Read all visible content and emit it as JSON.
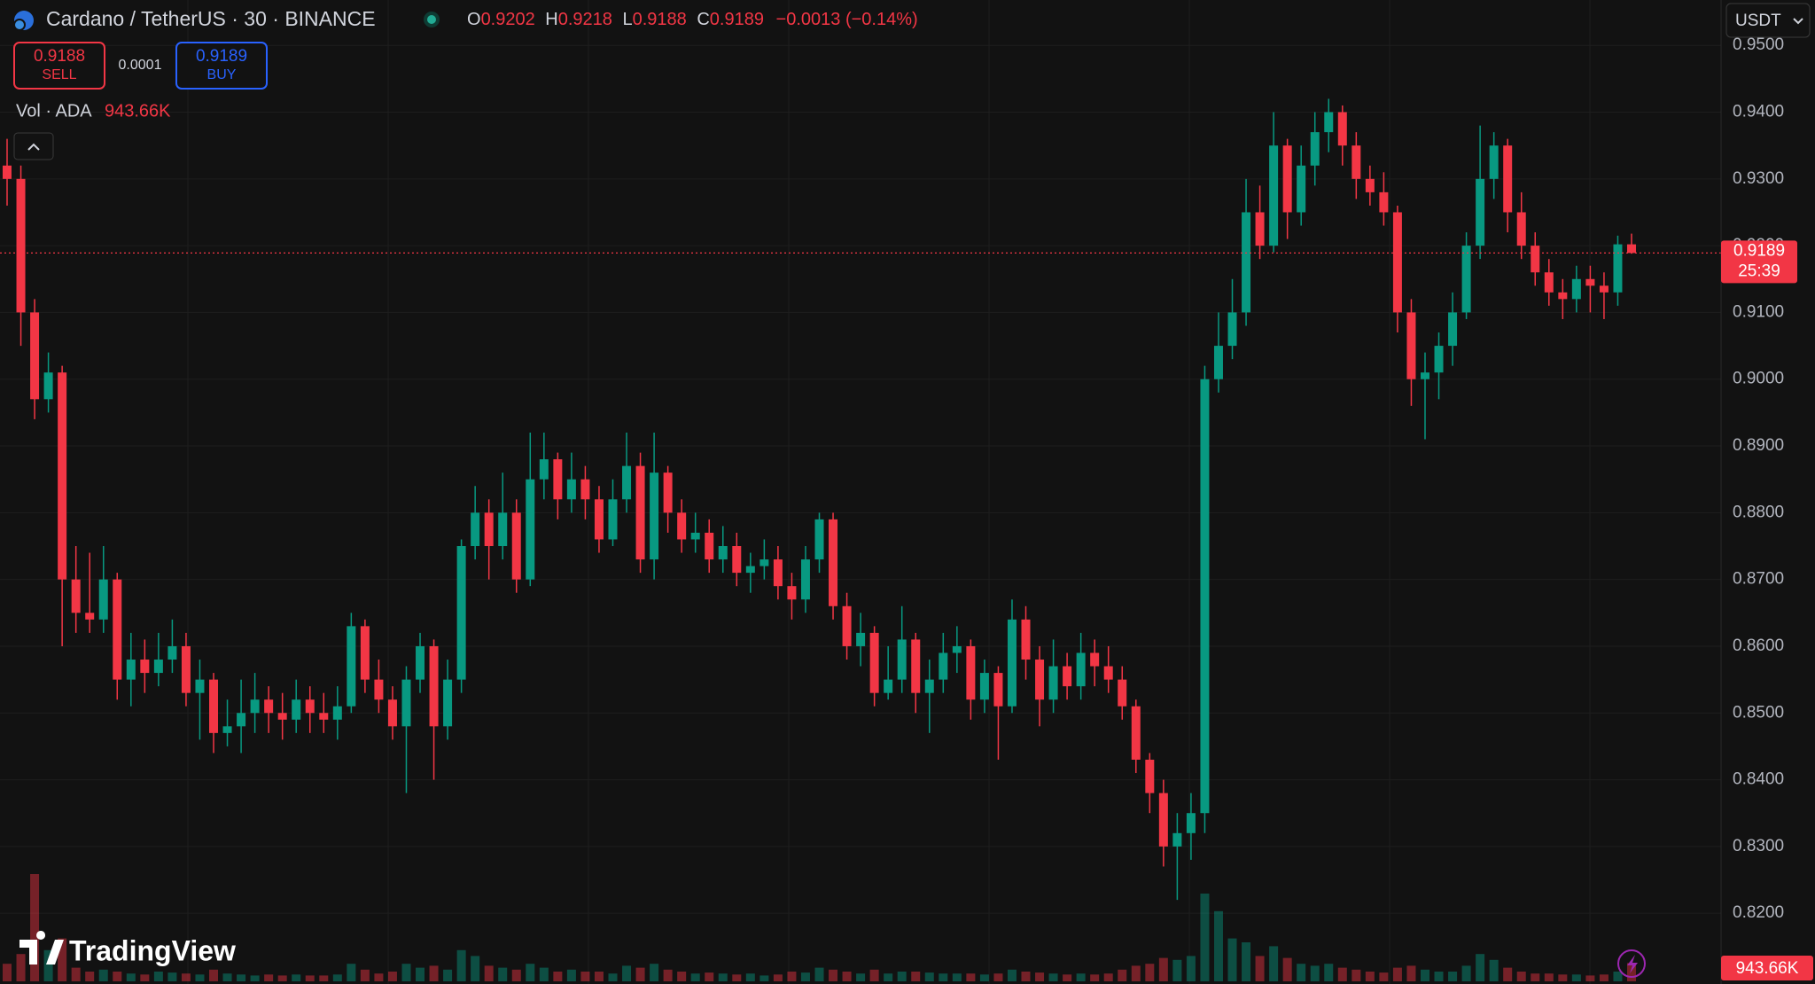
{
  "chart_data": {
    "type": "candlestick",
    "title": "Cardano / TetherUS · 30 · BINANCE",
    "legend_labels": [
      "O",
      "H",
      "L",
      "C"
    ],
    "change": "−0.0013 (−0.14%)",
    "up_color": "#089981",
    "down_color": "#f23645",
    "grid": true,
    "ylim": [
      0.8094,
      0.9568
    ],
    "yticks": [
      {
        "value": 0.82,
        "label": "0.8200"
      },
      {
        "value": 0.83,
        "label": "0.8300"
      },
      {
        "value": 0.84,
        "label": "0.8400"
      },
      {
        "value": 0.85,
        "label": "0.8500"
      },
      {
        "value": 0.86,
        "label": "0.8600"
      },
      {
        "value": 0.87,
        "label": "0.8700"
      },
      {
        "value": 0.88,
        "label": "0.8800"
      },
      {
        "value": 0.89,
        "label": "0.8900"
      },
      {
        "value": 0.9,
        "label": "0.9000"
      },
      {
        "value": 0.91,
        "label": "0.9100"
      },
      {
        "value": 0.92,
        "label": "0.9200"
      },
      {
        "value": 0.93,
        "label": "0.9300"
      },
      {
        "value": 0.94,
        "label": "0.9400"
      },
      {
        "value": 0.95,
        "label": "0.9500"
      }
    ],
    "open": [
      0.932,
      0.93,
      0.91,
      0.897,
      0.901,
      0.87,
      0.865,
      0.864,
      0.87,
      0.855,
      0.858,
      0.856,
      0.858,
      0.86,
      0.853,
      0.855,
      0.847,
      0.848,
      0.85,
      0.852,
      0.85,
      0.849,
      0.852,
      0.85,
      0.849,
      0.851,
      0.863,
      0.855,
      0.852,
      0.848,
      0.855,
      0.86,
      0.848,
      0.855,
      0.875,
      0.88,
      0.875,
      0.88,
      0.87,
      0.885,
      0.888,
      0.882,
      0.885,
      0.882,
      0.876,
      0.882,
      0.887,
      0.873,
      0.886,
      0.88,
      0.876,
      0.877,
      0.873,
      0.875,
      0.871,
      0.872,
      0.873,
      0.869,
      0.867,
      0.873,
      0.879,
      0.866,
      0.86,
      0.862,
      0.853,
      0.855,
      0.861,
      0.853,
      0.855,
      0.859,
      0.86,
      0.852,
      0.856,
      0.851,
      0.864,
      0.858,
      0.852,
      0.857,
      0.854,
      0.859,
      0.857,
      0.855,
      0.851,
      0.843,
      0.838,
      0.83,
      0.832,
      0.835,
      0.9,
      0.905,
      0.91,
      0.925,
      0.92,
      0.935,
      0.925,
      0.932,
      0.937,
      0.94,
      0.935,
      0.93,
      0.928,
      0.925,
      0.91,
      0.9,
      0.901,
      0.905,
      0.91,
      0.92,
      0.93,
      0.935,
      0.925,
      0.92,
      0.916,
      0.913,
      0.912,
      0.915,
      0.914,
      0.913,
      0.9202
    ],
    "high": [
      0.936,
      0.932,
      0.912,
      0.904,
      0.902,
      0.875,
      0.874,
      0.875,
      0.871,
      0.862,
      0.861,
      0.862,
      0.864,
      0.862,
      0.858,
      0.856,
      0.852,
      0.855,
      0.856,
      0.854,
      0.853,
      0.855,
      0.854,
      0.853,
      0.854,
      0.865,
      0.864,
      0.858,
      0.854,
      0.857,
      0.862,
      0.861,
      0.858,
      0.876,
      0.884,
      0.882,
      0.886,
      0.882,
      0.892,
      0.892,
      0.889,
      0.889,
      0.887,
      0.884,
      0.885,
      0.892,
      0.889,
      0.892,
      0.887,
      0.882,
      0.88,
      0.879,
      0.878,
      0.877,
      0.874,
      0.876,
      0.875,
      0.871,
      0.875,
      0.88,
      0.88,
      0.868,
      0.865,
      0.863,
      0.86,
      0.866,
      0.862,
      0.858,
      0.862,
      0.863,
      0.861,
      0.858,
      0.857,
      0.867,
      0.866,
      0.86,
      0.861,
      0.859,
      0.862,
      0.861,
      0.86,
      0.857,
      0.852,
      0.844,
      0.84,
      0.835,
      0.838,
      0.902,
      0.91,
      0.915,
      0.93,
      0.929,
      0.94,
      0.936,
      0.935,
      0.94,
      0.942,
      0.941,
      0.937,
      0.932,
      0.931,
      0.926,
      0.912,
      0.904,
      0.907,
      0.913,
      0.922,
      0.938,
      0.937,
      0.936,
      0.928,
      0.922,
      0.918,
      0.915,
      0.917,
      0.917,
      0.916,
      0.9215,
      0.9218
    ],
    "low": [
      0.926,
      0.905,
      0.894,
      0.895,
      0.86,
      0.862,
      0.862,
      0.862,
      0.852,
      0.851,
      0.853,
      0.854,
      0.856,
      0.851,
      0.846,
      0.844,
      0.845,
      0.844,
      0.847,
      0.847,
      0.846,
      0.847,
      0.847,
      0.847,
      0.846,
      0.85,
      0.853,
      0.85,
      0.846,
      0.838,
      0.853,
      0.84,
      0.846,
      0.853,
      0.873,
      0.87,
      0.873,
      0.868,
      0.869,
      0.882,
      0.879,
      0.88,
      0.879,
      0.874,
      0.875,
      0.88,
      0.871,
      0.87,
      0.877,
      0.874,
      0.874,
      0.871,
      0.871,
      0.869,
      0.868,
      0.87,
      0.867,
      0.864,
      0.865,
      0.871,
      0.864,
      0.858,
      0.857,
      0.851,
      0.852,
      0.853,
      0.85,
      0.847,
      0.853,
      0.856,
      0.849,
      0.85,
      0.843,
      0.85,
      0.855,
      0.848,
      0.85,
      0.852,
      0.852,
      0.854,
      0.853,
      0.849,
      0.841,
      0.835,
      0.827,
      0.822,
      0.828,
      0.832,
      0.898,
      0.903,
      0.908,
      0.918,
      0.919,
      0.921,
      0.923,
      0.929,
      0.934,
      0.932,
      0.927,
      0.926,
      0.923,
      0.907,
      0.896,
      0.891,
      0.897,
      0.902,
      0.909,
      0.918,
      0.927,
      0.922,
      0.918,
      0.914,
      0.911,
      0.909,
      0.91,
      0.91,
      0.909,
      0.911,
      0.9188
    ],
    "close": [
      0.93,
      0.91,
      0.897,
      0.901,
      0.87,
      0.865,
      0.864,
      0.87,
      0.855,
      0.858,
      0.856,
      0.858,
      0.86,
      0.853,
      0.855,
      0.847,
      0.848,
      0.85,
      0.852,
      0.85,
      0.849,
      0.852,
      0.85,
      0.849,
      0.851,
      0.863,
      0.855,
      0.852,
      0.848,
      0.855,
      0.86,
      0.848,
      0.855,
      0.875,
      0.88,
      0.875,
      0.88,
      0.87,
      0.885,
      0.888,
      0.882,
      0.885,
      0.882,
      0.876,
      0.882,
      0.887,
      0.873,
      0.886,
      0.88,
      0.876,
      0.877,
      0.873,
      0.875,
      0.871,
      0.872,
      0.873,
      0.869,
      0.867,
      0.873,
      0.879,
      0.866,
      0.86,
      0.862,
      0.853,
      0.855,
      0.861,
      0.853,
      0.855,
      0.859,
      0.86,
      0.852,
      0.856,
      0.851,
      0.864,
      0.858,
      0.852,
      0.857,
      0.854,
      0.859,
      0.857,
      0.855,
      0.851,
      0.843,
      0.838,
      0.83,
      0.832,
      0.835,
      0.9,
      0.905,
      0.91,
      0.925,
      0.92,
      0.935,
      0.925,
      0.932,
      0.937,
      0.94,
      0.935,
      0.93,
      0.928,
      0.925,
      0.91,
      0.9,
      0.901,
      0.905,
      0.91,
      0.92,
      0.93,
      0.935,
      0.925,
      0.92,
      0.916,
      0.913,
      0.912,
      0.915,
      0.914,
      0.913,
      0.9202,
      0.9189
    ],
    "volume": {
      "name": "Vol · ADA",
      "label": "943.66K",
      "values": [
        900,
        1400,
        5500,
        1600,
        2200,
        700,
        500,
        600,
        500,
        400,
        350,
        500,
        450,
        400,
        350,
        600,
        400,
        350,
        300,
        350,
        300,
        350,
        300,
        300,
        350,
        900,
        600,
        400,
        500,
        900,
        700,
        800,
        600,
        1600,
        1300,
        800,
        700,
        600,
        900,
        700,
        500,
        600,
        500,
        500,
        400,
        800,
        700,
        900,
        600,
        500,
        400,
        450,
        400,
        350,
        400,
        300,
        350,
        500,
        450,
        700,
        600,
        500,
        400,
        600,
        400,
        500,
        500,
        450,
        400,
        400,
        400,
        350,
        400,
        600,
        500,
        450,
        400,
        350,
        400,
        350,
        400,
        600,
        800,
        900,
        1200,
        1100,
        1300,
        4500,
        3600,
        2200,
        2000,
        1300,
        1800,
        1200,
        900,
        800,
        900,
        700,
        600,
        500,
        450,
        700,
        800,
        600,
        500,
        500,
        800,
        1400,
        1100,
        700,
        500,
        400,
        400,
        350,
        350,
        300,
        350,
        500,
        943.66
      ]
    },
    "countdown": "25:39"
  },
  "toolbar": {
    "sell_price": "0.9188",
    "sell_label": "SELL",
    "spread": "0.0001",
    "buy_price": "0.9189",
    "buy_label": "BUY",
    "currency": "USDT",
    "branding": "TradingView"
  }
}
